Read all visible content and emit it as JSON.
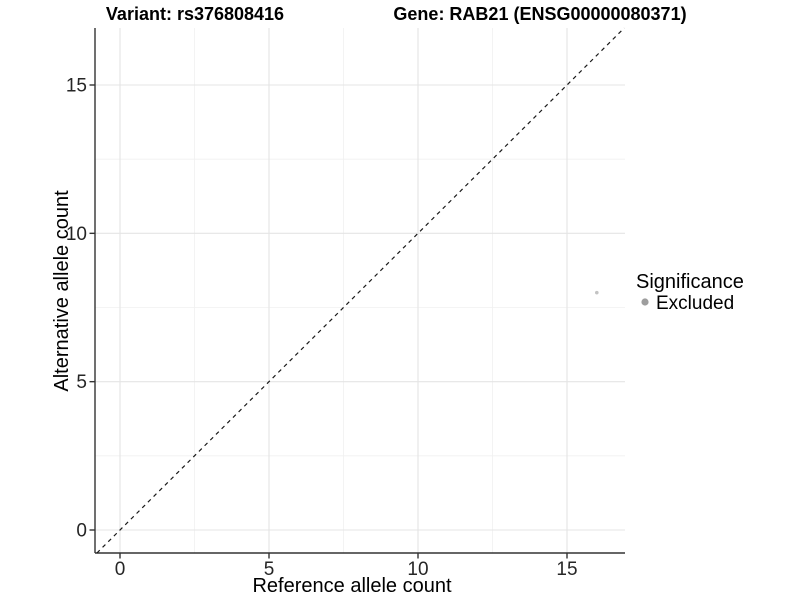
{
  "chart_data": {
    "type": "scatter",
    "title_variant": "Variant: rs376808416",
    "title_gene": "Gene: RAB21 (ENSG00000080371)",
    "xlabel": "Reference allele count",
    "ylabel": "Alternative allele count",
    "x_ticks": [
      0,
      5,
      10,
      15
    ],
    "y_ticks": [
      0,
      5,
      10,
      15
    ],
    "x_minor_ticks": [
      2.5,
      7.5,
      12.5
    ],
    "y_minor_ticks": [
      2.5,
      7.5,
      12.5
    ],
    "xlim": [
      -0.84,
      16.95
    ],
    "ylim": [
      -0.78,
      16.92
    ],
    "grid": "major+minor",
    "legend_position": "right",
    "identity_line": {
      "slope": 1,
      "intercept": 0,
      "style": "dashed",
      "color": "#000000"
    },
    "points": [
      {
        "x": 16,
        "y": 8,
        "significance": "Excluded"
      }
    ],
    "point_style": {
      "color": "#c3c3c3",
      "radius_px": 1.8
    },
    "legend": {
      "title": "Significance",
      "items": [
        {
          "label": "Excluded",
          "color": "#9e9e9e"
        }
      ]
    },
    "colors": {
      "axis": "#333333",
      "tick": "#333333",
      "grid_major": "#e4e4e4",
      "grid_minor": "#f0f0f0",
      "background": "#ffffff"
    }
  }
}
